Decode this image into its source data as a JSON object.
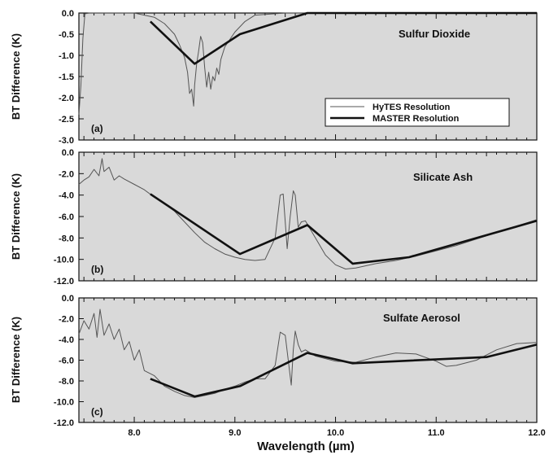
{
  "figure": {
    "xlabel": "Wavelength (µm)",
    "xticks": [
      "8.0",
      "9.0",
      "10.0",
      "11.0",
      "12.0"
    ]
  },
  "legend": {
    "hytes": "HyTES Resolution",
    "master": "MASTER Resolution"
  },
  "colors": {
    "panel_bg": "#d9d9d9",
    "hytes_line": "#555555",
    "master_line": "#111111"
  },
  "chart_data": [
    {
      "type": "line",
      "panel": "(a)",
      "title": "Sulfur Dioxide",
      "ylabel": "BT Difference (K)",
      "xlim": [
        7.45,
        12.0
      ],
      "ylim": [
        -3.0,
        0.0
      ],
      "yticks": [
        "0.0",
        "-0.5",
        "-1.0",
        "-1.5",
        "-2.0",
        "-2.5",
        "-3.0"
      ],
      "legend_position": "right",
      "series": [
        {
          "name": "HyTES Resolution",
          "x": [
            7.45,
            7.47,
            7.49,
            7.51,
            7.55,
            7.6,
            8.0,
            8.2,
            8.3,
            8.4,
            8.45,
            8.5,
            8.53,
            8.55,
            8.57,
            8.59,
            8.6,
            8.62,
            8.64,
            8.66,
            8.68,
            8.7,
            8.72,
            8.74,
            8.76,
            8.78,
            8.8,
            8.82,
            8.84,
            8.86,
            8.9,
            9.0,
            9.1,
            9.2,
            9.5,
            10.0,
            11.0,
            12.0
          ],
          "y": [
            -2.4,
            -1.7,
            -0.6,
            -0.02,
            0.0,
            0.0,
            0.0,
            -0.1,
            -0.25,
            -0.5,
            -0.75,
            -1.05,
            -1.4,
            -1.9,
            -1.8,
            -2.2,
            -1.7,
            -1.2,
            -0.9,
            -0.55,
            -0.7,
            -1.3,
            -1.75,
            -1.4,
            -1.8,
            -1.5,
            -1.6,
            -1.3,
            -1.45,
            -1.1,
            -0.8,
            -0.45,
            -0.2,
            -0.05,
            0.0,
            0.0,
            0.0,
            0.0
          ]
        },
        {
          "name": "MASTER Resolution",
          "x": [
            8.16,
            8.6,
            9.05,
            9.72,
            12.0
          ],
          "y": [
            -0.2,
            -1.2,
            -0.5,
            0.0,
            0.0
          ]
        }
      ]
    },
    {
      "type": "line",
      "panel": "(b)",
      "title": "Silicate Ash",
      "ylabel": "BT Difference (K)",
      "xlim": [
        7.45,
        12.0
      ],
      "ylim": [
        -12.0,
        0.0
      ],
      "yticks": [
        "0.0",
        "-2.0",
        "-4.0",
        "-6.0",
        "-8.0",
        "-10.0",
        "-12.0"
      ],
      "series": [
        {
          "name": "HyTES Resolution",
          "x": [
            7.45,
            7.5,
            7.55,
            7.6,
            7.65,
            7.68,
            7.7,
            7.75,
            7.8,
            7.85,
            7.9,
            8.0,
            8.1,
            8.2,
            8.3,
            8.4,
            8.5,
            8.6,
            8.7,
            8.8,
            8.9,
            9.0,
            9.1,
            9.2,
            9.3,
            9.4,
            9.45,
            9.48,
            9.52,
            9.55,
            9.58,
            9.6,
            9.63,
            9.66,
            9.7,
            9.75,
            9.8,
            9.9,
            10.0,
            10.1,
            10.2,
            10.4,
            10.6,
            10.8,
            11.0,
            11.2,
            11.4,
            11.6,
            11.8,
            12.0
          ],
          "y": [
            -3.0,
            -2.6,
            -2.3,
            -1.6,
            -2.2,
            -0.6,
            -1.8,
            -1.4,
            -2.6,
            -2.2,
            -2.5,
            -3.0,
            -3.5,
            -4.2,
            -4.8,
            -5.5,
            -6.5,
            -7.5,
            -8.4,
            -9.0,
            -9.5,
            -9.8,
            -10.0,
            -10.1,
            -10.0,
            -8.0,
            -4.0,
            -3.9,
            -9.0,
            -6.0,
            -3.6,
            -4.0,
            -7.0,
            -6.5,
            -6.4,
            -7.2,
            -8.0,
            -9.6,
            -10.5,
            -10.9,
            -10.8,
            -10.4,
            -10.1,
            -9.7,
            -9.2,
            -8.7,
            -8.1,
            -7.5,
            -6.9,
            -6.3
          ]
        },
        {
          "name": "MASTER Resolution",
          "x": [
            8.16,
            9.05,
            9.72,
            10.17,
            10.73,
            12.0
          ],
          "y": [
            -3.9,
            -9.5,
            -6.8,
            -10.4,
            -9.8,
            -6.4
          ]
        }
      ]
    },
    {
      "type": "line",
      "panel": "(c)",
      "title": "Sulfate Aerosol",
      "ylabel": "BT Difference (K)",
      "xlim": [
        7.45,
        12.0
      ],
      "ylim": [
        -12.0,
        0.0
      ],
      "yticks": [
        "0.0",
        "-2.0",
        "-4.0",
        "-6.0",
        "-8.0",
        "-10.0",
        "-12.0"
      ],
      "series": [
        {
          "name": "HyTES Resolution",
          "x": [
            7.45,
            7.5,
            7.55,
            7.6,
            7.63,
            7.66,
            7.7,
            7.75,
            7.8,
            7.85,
            7.9,
            7.95,
            8.0,
            8.05,
            8.1,
            8.2,
            8.3,
            8.4,
            8.5,
            8.6,
            8.7,
            8.8,
            8.9,
            9.0,
            9.1,
            9.2,
            9.3,
            9.4,
            9.45,
            9.5,
            9.53,
            9.56,
            9.58,
            9.6,
            9.63,
            9.66,
            9.7,
            9.8,
            10.0,
            10.2,
            10.4,
            10.6,
            10.8,
            11.0,
            11.1,
            11.2,
            11.4,
            11.6,
            11.8,
            12.0
          ],
          "y": [
            -3.5,
            -2.2,
            -3.0,
            -1.5,
            -3.8,
            -1.1,
            -3.6,
            -2.5,
            -4.0,
            -3.0,
            -5.0,
            -4.2,
            -6.0,
            -5.0,
            -7.0,
            -7.5,
            -8.5,
            -9.0,
            -9.4,
            -9.6,
            -9.4,
            -9.2,
            -8.8,
            -8.5,
            -8.1,
            -7.8,
            -7.8,
            -6.5,
            -3.3,
            -3.6,
            -6.0,
            -8.4,
            -5.0,
            -3.2,
            -4.5,
            -5.2,
            -5.0,
            -5.6,
            -6.1,
            -6.2,
            -5.7,
            -5.3,
            -5.4,
            -6.1,
            -6.6,
            -6.5,
            -6.0,
            -5.0,
            -4.4,
            -4.3
          ]
        },
        {
          "name": "MASTER Resolution",
          "x": [
            8.16,
            8.6,
            9.05,
            9.72,
            10.17,
            11.5,
            12.0
          ],
          "y": [
            -7.8,
            -9.5,
            -8.5,
            -5.3,
            -6.3,
            -5.7,
            -4.5
          ]
        }
      ]
    }
  ]
}
